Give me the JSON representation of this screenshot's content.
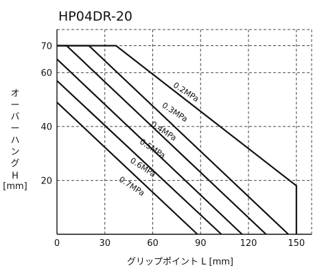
{
  "chart_data": {
    "type": "line",
    "title": "HP04DR-20",
    "xlabel": "グリップポイント L [mm]",
    "ylabel": [
      "オ",
      "ー",
      "バ",
      "ー",
      "ハ",
      "ン",
      "グ",
      "H",
      "[mm]"
    ],
    "xlim": [
      0,
      160
    ],
    "ylim": [
      0,
      76
    ],
    "x_ticks": [
      0,
      30,
      60,
      90,
      120,
      150
    ],
    "y_ticks": [
      20,
      40,
      60,
      70
    ],
    "grid": true,
    "series": [
      {
        "name": "0.2MPa",
        "points": [
          [
            0,
            70
          ],
          [
            37,
            70
          ],
          [
            150,
            18
          ],
          [
            150,
            0
          ]
        ],
        "label_at": [
          80,
          52
        ],
        "label_angle": 33
      },
      {
        "name": "0.3MPa",
        "points": [
          [
            0,
            70
          ],
          [
            20,
            70
          ],
          [
            145,
            0
          ]
        ],
        "label_at": [
          73,
          44.5
        ],
        "label_angle": 33
      },
      {
        "name": "0.4MPa",
        "points": [
          [
            0,
            70
          ],
          [
            6,
            70
          ],
          [
            131,
            0
          ]
        ],
        "label_at": [
          66,
          37.5
        ],
        "label_angle": 33
      },
      {
        "name": "0.5MPa",
        "points": [
          [
            0,
            65
          ],
          [
            116,
            0
          ]
        ],
        "label_at": [
          59,
          31
        ],
        "label_angle": 33
      },
      {
        "name": "0.6MPa",
        "points": [
          [
            0,
            57
          ],
          [
            103,
            0
          ]
        ],
        "label_at": [
          53,
          24
        ],
        "label_angle": 33
      },
      {
        "name": "0.7MPa",
        "points": [
          [
            0,
            49
          ],
          [
            88,
            0
          ]
        ],
        "label_at": [
          46,
          17
        ],
        "label_angle": 33
      }
    ]
  }
}
